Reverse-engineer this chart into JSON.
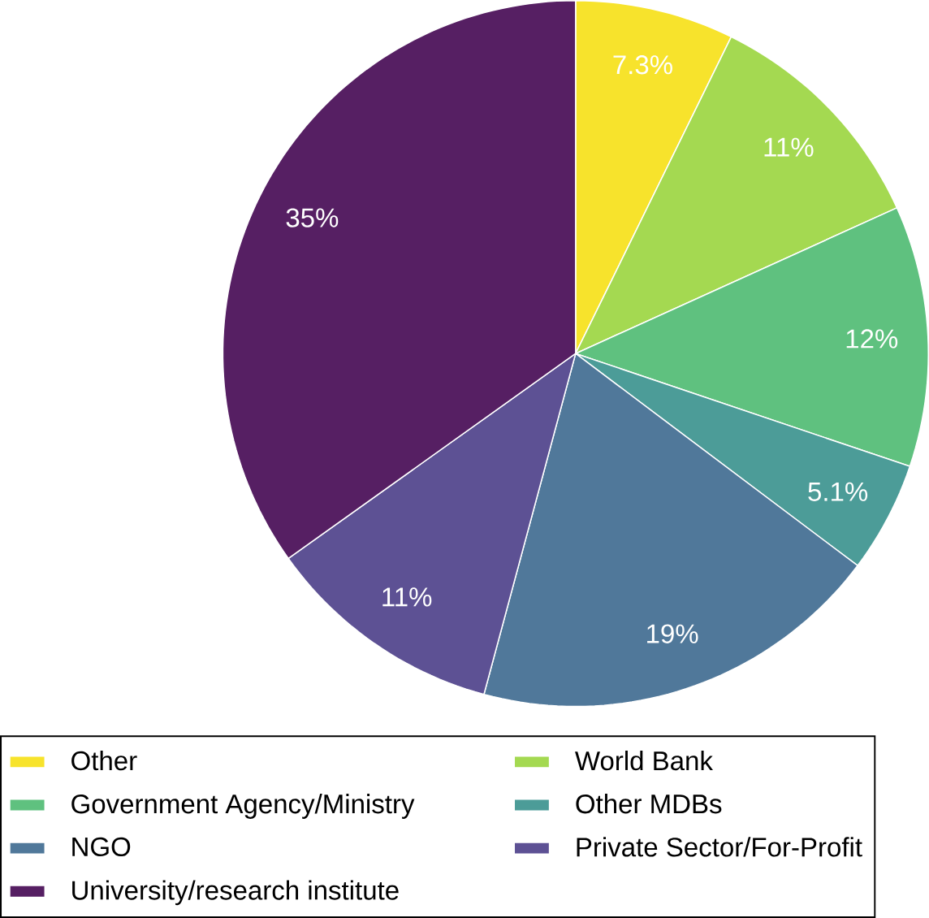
{
  "chart_data": {
    "type": "pie",
    "categories": [
      "Other",
      "World Bank",
      "Government Agency/Ministry",
      "Other MDBs",
      "NGO",
      "Private Sector/For-Profit",
      "University/research institute"
    ],
    "values": [
      7.3,
      11,
      12,
      5.1,
      19,
      11,
      35
    ],
    "colors": [
      "#f7e32c",
      "#a4d951",
      "#5fc17f",
      "#4c9c98",
      "#50789a",
      "#5d5194",
      "#561f63"
    ],
    "value_labels": [
      "7.3%",
      "11%",
      "12%",
      "5.1%",
      "19%",
      "11%",
      "35%"
    ],
    "legend": "bottom"
  }
}
